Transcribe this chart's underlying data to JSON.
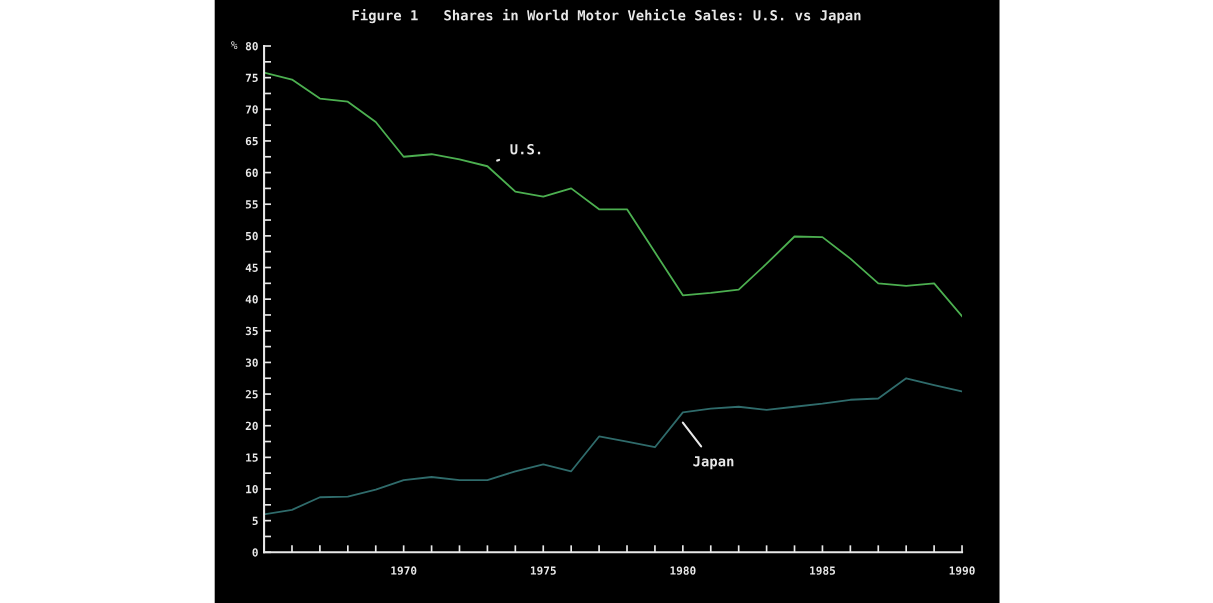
{
  "chart_data": {
    "type": "line",
    "title": "Figure 1   Shares in World Motor Vehicle Sales: U.S. vs Japan",
    "ylabel": "%",
    "x": [
      1965,
      1966,
      1967,
      1968,
      1969,
      1970,
      1971,
      1972,
      1973,
      1974,
      1975,
      1976,
      1977,
      1978,
      1979,
      1980,
      1981,
      1982,
      1983,
      1984,
      1985,
      1986,
      1987,
      1988,
      1989,
      1990
    ],
    "series": [
      {
        "name": "U.S.",
        "color": "#4caf50",
        "values": [
          75.8,
          74.7,
          71.7,
          71.2,
          68.0,
          62.5,
          62.9,
          62.1,
          61.0,
          57.0,
          56.2,
          57.5,
          54.2,
          54.2,
          47.4,
          40.6,
          41.0,
          41.5,
          45.6,
          49.9,
          49.8,
          46.4,
          42.5,
          42.1,
          42.5,
          37.3
        ]
      },
      {
        "name": "Japan",
        "color": "#2f6b6b",
        "values": [
          6.0,
          6.7,
          8.7,
          8.8,
          9.9,
          11.4,
          11.9,
          11.4,
          11.4,
          12.8,
          13.9,
          12.8,
          18.3,
          17.5,
          16.6,
          22.1,
          22.7,
          23.0,
          22.5,
          23.0,
          23.5,
          24.1,
          24.3,
          27.5,
          26.4,
          25.4
        ]
      }
    ],
    "xlim": [
      1965,
      1990
    ],
    "xticks": [
      {
        "value": 1965,
        "label": null
      },
      {
        "value": 1966,
        "label": null
      },
      {
        "value": 1967,
        "label": null
      },
      {
        "value": 1968,
        "label": null
      },
      {
        "value": 1969,
        "label": null
      },
      1970,
      {
        "value": 1971,
        "label": null
      },
      {
        "value": 1972,
        "label": null
      },
      {
        "value": 1973,
        "label": null
      },
      {
        "value": 1974,
        "label": null
      },
      1975,
      {
        "value": 1976,
        "label": null
      },
      {
        "value": 1977,
        "label": null
      },
      {
        "value": 1978,
        "label": null
      },
      {
        "value": 1979,
        "label": null
      },
      1980,
      {
        "value": 1981,
        "label": null
      },
      {
        "value": 1982,
        "label": null
      },
      {
        "value": 1983,
        "label": null
      },
      {
        "value": 1984,
        "label": null
      },
      1985,
      {
        "value": 1986,
        "label": null
      },
      {
        "value": 1987,
        "label": null
      },
      {
        "value": 1988,
        "label": null
      },
      {
        "value": 1989,
        "label": null
      },
      1990
    ],
    "ylim": [
      0,
      80
    ],
    "yticks": [
      0,
      {
        "value": 2.5,
        "label": null
      },
      5,
      {
        "value": 7.5,
        "label": null
      },
      10,
      {
        "value": 12.5,
        "label": null
      },
      15,
      {
        "value": 17.5,
        "label": null
      },
      20,
      {
        "value": 22.5,
        "label": null
      },
      25,
      {
        "value": 27.5,
        "label": null
      },
      30,
      {
        "value": 32.5,
        "label": null
      },
      35,
      {
        "value": 37.5,
        "label": null
      },
      40,
      {
        "value": 42.5,
        "label": null
      },
      45,
      {
        "value": 47.5,
        "label": null
      },
      50,
      {
        "value": 52.5,
        "label": null
      },
      55,
      {
        "value": 57.5,
        "label": null
      },
      60,
      {
        "value": 62.5,
        "label": null
      },
      65,
      {
        "value": 67.5,
        "label": null
      },
      70,
      {
        "value": 72.5,
        "label": null
      },
      75,
      {
        "value": 77.5,
        "label": null
      },
      80
    ],
    "grid": false,
    "marker": "none",
    "line_style": "solid"
  }
}
